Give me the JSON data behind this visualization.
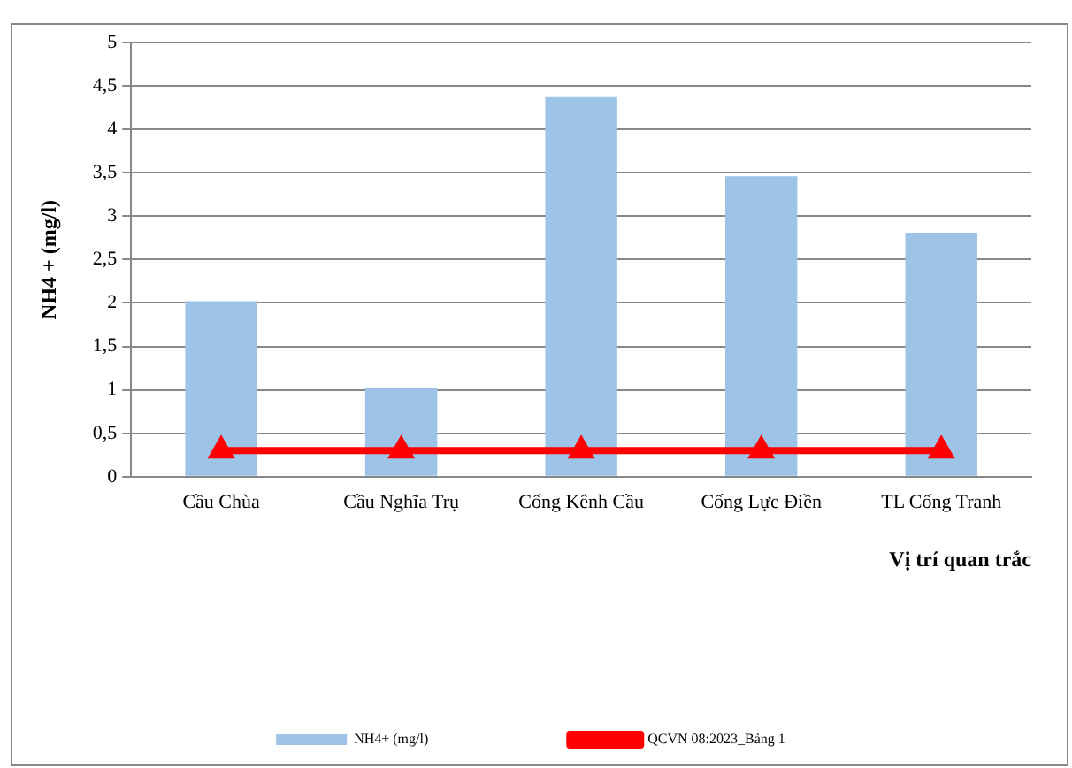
{
  "chart_data": {
    "type": "bar",
    "ylabel": "NH4 + (mg/l)",
    "xlabel": "Vị trí quan trắc",
    "categories": [
      "Cầu Chùa",
      "Cầu Nghĩa Trụ",
      "Cống Kênh Cầu",
      "Cống Lực Điền",
      "TL Cống Tranh"
    ],
    "series": [
      {
        "name": "NH4+ (mg/l)",
        "color": "#9dc3e6",
        "values": [
          2.02,
          1.02,
          4.37,
          3.46,
          2.81
        ]
      },
      {
        "name": "QCVN 08:2023_Bảng 1",
        "type": "line",
        "color": "#ff0000",
        "values": [
          0.3,
          0.3,
          0.3,
          0.3,
          0.3
        ]
      }
    ],
    "ylim": [
      0,
      5
    ],
    "yticks": [
      0,
      {
        "value": 0.5,
        "label": "0,5"
      },
      1,
      {
        "value": 1.5,
        "label": "1,5"
      },
      2,
      {
        "value": 2.5,
        "label": "2,5"
      },
      3,
      {
        "value": 3.5,
        "label": "3,5"
      },
      4,
      {
        "value": 4.5,
        "label": "4,5"
      },
      5
    ],
    "grid": "y",
    "legend": "bottom",
    "marker": "triangle"
  }
}
